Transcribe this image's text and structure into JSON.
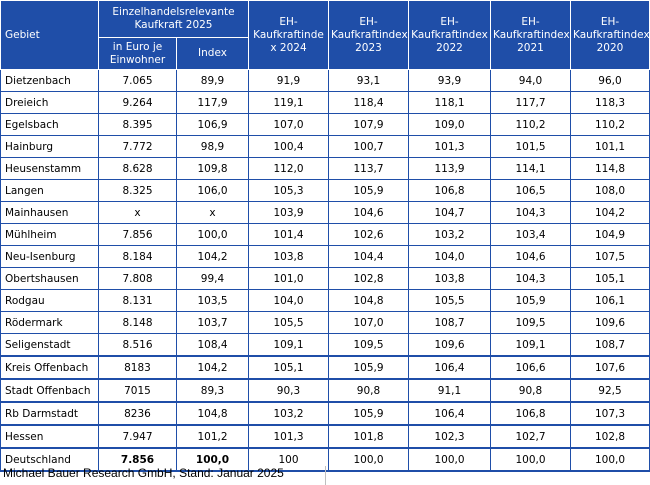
{
  "header": {
    "gebiet": "Gebiet",
    "group_title": "Einzelhandelsrelevante Kaufkraft 2025",
    "sub_euro": "in Euro je Einwohner",
    "sub_index": "Index",
    "cols": [
      "EH-Kaufkraftinde x 2024",
      "EH-Kaufkraftindex 2023",
      "EH-Kaufkraftindex 2022",
      "EH-Kaufkraftindex 2021",
      "EH-Kaufkraftindex 2020"
    ]
  },
  "rows": [
    {
      "name": "Dietzenbach",
      "euro": "7.065",
      "index": "89,9",
      "v2024": "91,9",
      "v2023": "93,1",
      "v2022": "93,9",
      "v2021": "94,0",
      "v2020": "96,0"
    },
    {
      "name": "Dreieich",
      "euro": "9.264",
      "index": "117,9",
      "v2024": "119,1",
      "v2023": "118,4",
      "v2022": "118,1",
      "v2021": "117,7",
      "v2020": "118,3"
    },
    {
      "name": "Egelsbach",
      "euro": "8.395",
      "index": "106,9",
      "v2024": "107,0",
      "v2023": "107,9",
      "v2022": "109,0",
      "v2021": "110,2",
      "v2020": "110,2"
    },
    {
      "name": "Hainburg",
      "euro": "7.772",
      "index": "98,9",
      "v2024": "100,4",
      "v2023": "100,7",
      "v2022": "101,3",
      "v2021": "101,5",
      "v2020": "101,1"
    },
    {
      "name": "Heusenstamm",
      "euro": "8.628",
      "index": "109,8",
      "v2024": "112,0",
      "v2023": "113,7",
      "v2022": "113,9",
      "v2021": "114,1",
      "v2020": "114,8"
    },
    {
      "name": "Langen",
      "euro": "8.325",
      "index": "106,0",
      "v2024": "105,3",
      "v2023": "105,9",
      "v2022": "106,8",
      "v2021": "106,5",
      "v2020": "108,0"
    },
    {
      "name": "Mainhausen",
      "euro": "x",
      "index": "x",
      "v2024": "103,9",
      "v2023": "104,6",
      "v2022": "104,7",
      "v2021": "104,3",
      "v2020": "104,2"
    },
    {
      "name": "Mühlheim",
      "euro": "7.856",
      "index": "100,0",
      "v2024": "101,4",
      "v2023": "102,6",
      "v2022": "103,2",
      "v2021": "103,4",
      "v2020": "104,9"
    },
    {
      "name": "Neu-Isenburg",
      "euro": "8.184",
      "index": "104,2",
      "v2024": "103,8",
      "v2023": "104,4",
      "v2022": "104,0",
      "v2021": "104,6",
      "v2020": "107,5"
    },
    {
      "name": "Obertshausen",
      "euro": "7.808",
      "index": "99,4",
      "v2024": "101,0",
      "v2023": "102,8",
      "v2022": "103,8",
      "v2021": "104,3",
      "v2020": "105,1"
    },
    {
      "name": "Rodgau",
      "euro": "8.131",
      "index": "103,5",
      "v2024": "104,0",
      "v2023": "104,8",
      "v2022": "105,5",
      "v2021": "105,9",
      "v2020": "106,1"
    },
    {
      "name": "Rödermark",
      "euro": "8.148",
      "index": "103,7",
      "v2024": "105,5",
      "v2023": "107,0",
      "v2022": "108,7",
      "v2021": "109,5",
      "v2020": "109,6"
    },
    {
      "name": "Seligenstadt",
      "euro": "8.516",
      "index": "108,4",
      "v2024": "109,1",
      "v2023": "109,5",
      "v2022": "109,6",
      "v2021": "109,1",
      "v2020": "108,7"
    },
    {
      "name": "Kreis Offenbach",
      "euro": "8183",
      "index": "104,2",
      "v2024": "105,1",
      "v2023": "105,9",
      "v2022": "106,4",
      "v2021": "106,6",
      "v2020": "107,6"
    },
    {
      "name": "Stadt Offenbach",
      "euro": "7015",
      "index": "89,3",
      "v2024": "90,3",
      "v2023": "90,8",
      "v2022": "91,1",
      "v2021": "90,8",
      "v2020": "92,5"
    },
    {
      "name": "Rb Darmstadt",
      "euro": "8236",
      "index": "104,8",
      "v2024": "103,2",
      "v2023": "105,9",
      "v2022": "106,4",
      "v2021": "106,8",
      "v2020": "107,3"
    },
    {
      "name": "Hessen",
      "euro": "7.947",
      "index": "101,2",
      "v2024": "101,3",
      "v2023": "101,8",
      "v2022": "102,3",
      "v2021": "102,7",
      "v2020": "102,8"
    },
    {
      "name": "Deutschland",
      "euro": "7.856",
      "index": "100,0",
      "v2024": "100",
      "v2023": "100,0",
      "v2022": "100,0",
      "v2021": "100,0",
      "v2020": "100,0"
    }
  ],
  "source": "Michael Bauer Research GmbH, Stand: Januar 2025"
}
